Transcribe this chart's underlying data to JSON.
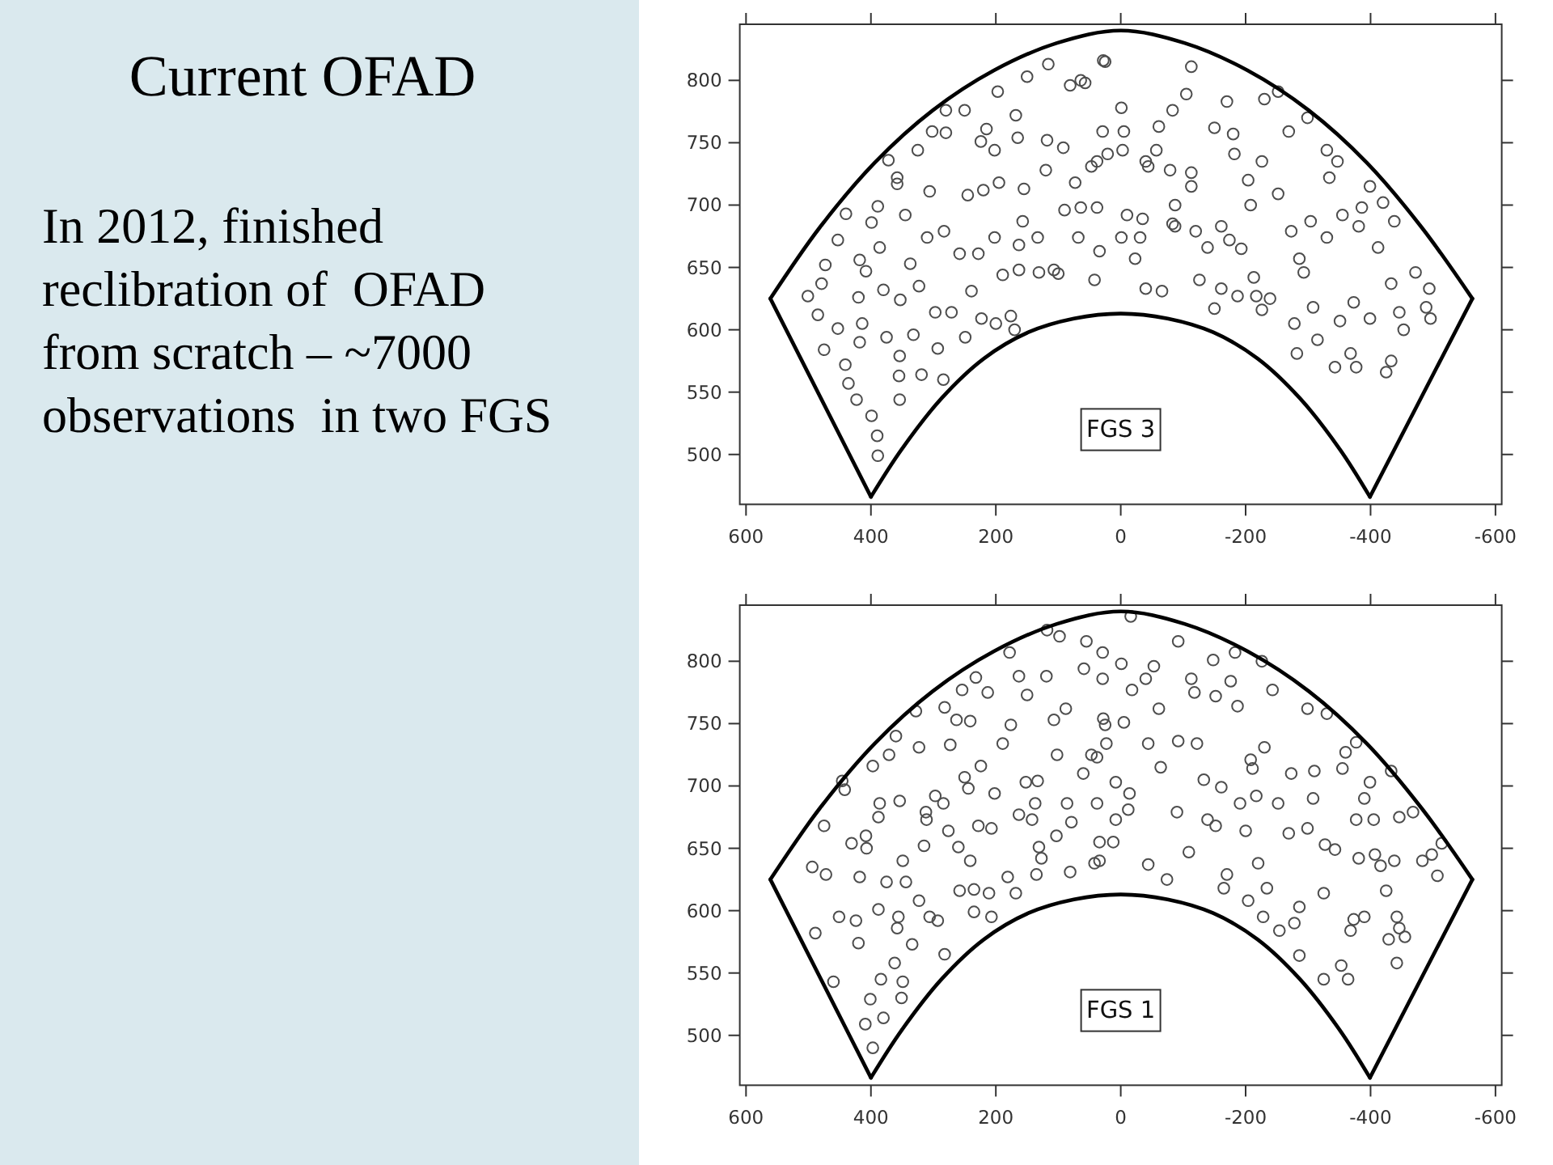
{
  "chart_data": [
    {
      "type": "other",
      "title": "Current OFAD",
      "annotations": [
        "In 2012, finished reclibration of  OFAD from scratch – ~7000 observations  in two FGS"
      ]
    },
    {
      "type": "scatter",
      "xlim": [
        610,
        -610
      ],
      "ylim": [
        460,
        845
      ],
      "xticks": [
        600,
        400,
        200,
        0,
        -200,
        -400,
        -600
      ],
      "yticks": [
        500,
        550,
        600,
        650,
        700,
        750,
        800
      ],
      "marker": "circle",
      "annotations": [
        "FGS 3"
      ],
      "series": [
        {
          "type": "scatter",
          "color": "#4d4d4d",
          "x": [
            501,
            485,
            475,
            473,
            479,
            453,
            440,
            453,
            441,
            436,
            423,
            418,
            414,
            420,
            418,
            408,
            399,
            389,
            386,
            399,
            390,
            389,
            375,
            380,
            372,
            358,
            358,
            353,
            355,
            354,
            354,
            345,
            337,
            332,
            325,
            323,
            319,
            306,
            310,
            302,
            297,
            293,
            284,
            283,
            280,
            280,
            271,
            258,
            250,
            245,
            249,
            239,
            228,
            224,
            220,
            223,
            215,
            202,
            202,
            200,
            195,
            189,
            197,
            176,
            170,
            163,
            163,
            165,
            168,
            157,
            155,
            150,
            133,
            131,
            120,
            118,
            116,
            107,
            100,
            92,
            90,
            81,
            73,
            68,
            64,
            57,
            64,
            47,
            42,
            38,
            34,
            29,
            28,
            25,
            -1,
            -5,
            -3,
            21,
            38,
            -10,
            -1,
            -31,
            -35,
            -23,
            -40,
            -40,
            -44,
            -57,
            -61,
            -83,
            -79,
            -87,
            -83,
            -87,
            -66,
            -105,
            -113,
            -113,
            -113,
            -120,
            -126,
            -139,
            -150,
            -161,
            -161,
            -150,
            -170,
            -174,
            -180,
            -182,
            -187,
            -193,
            -204,
            -208,
            -213,
            -217,
            -226,
            -226,
            -230,
            -239,
            -252,
            -252,
            -269,
            -273,
            -278,
            -282,
            -286,
            -293,
            -299,
            -304,
            -308,
            -315,
            -330,
            -330,
            -334,
            -347,
            -343,
            -351,
            -355,
            -368,
            -377,
            -373,
            -381,
            -386,
            -399,
            -399,
            -412,
            -420,
            -425,
            -433,
            -438,
            -433,
            -446,
            -453,
            -472,
            -489,
            -496,
            -494
          ],
          "values": [
            627,
            612,
            584,
            652,
            637,
            672,
            693,
            601,
            572,
            557,
            544,
            590,
            605,
            626,
            656,
            647,
            686,
            699,
            666,
            531,
            515,
            499,
            594,
            632,
            736,
            722,
            717,
            624,
            563,
            579,
            544,
            692,
            653,
            596,
            744,
            635,
            564,
            711,
            674,
            759,
            614,
            585,
            560,
            679,
            776,
            758,
            614,
            661,
            776,
            708,
            594,
            631,
            661,
            751,
            712,
            609,
            761,
            674,
            744,
            605,
            718,
            644,
            791,
            611,
            600,
            668,
            648,
            754,
            772,
            687,
            713,
            803,
            674,
            646,
            728,
            752,
            813,
            648,
            645,
            746,
            696,
            796,
            718,
            674,
            800,
            798,
            698,
            731,
            640,
            698,
            663,
            759,
            816,
            815,
            778,
            759,
            744,
            741,
            735,
            692,
            674,
            674,
            689,
            657,
            633,
            735,
            731,
            744,
            763,
            776,
            728,
            700,
            685,
            683,
            631,
            789,
            811,
            726,
            715,
            679,
            640,
            666,
            762,
            683,
            633,
            617,
            783,
            672,
            757,
            741,
            627,
            665,
            720,
            700,
            642,
            627,
            616,
            735,
            785,
            625,
            791,
            709,
            759,
            679,
            605,
            581,
            657,
            646,
            770,
            687,
            618,
            592,
            744,
            674,
            722,
            735,
            570,
            607,
            692,
            581,
            570,
            622,
            683,
            698,
            715,
            609,
            666,
            702,
            566,
            637,
            687,
            575,
            614,
            600,
            646,
            618,
            609,
            633
          ]
        },
        {
          "type": "line",
          "color": "#000000",
          "marker": "none",
          "x": [
            561,
            482,
            394,
            301,
            203,
            102,
            0,
            -102,
            -203,
            -301,
            -394,
            -482,
            -563
          ],
          "values": [
            625,
            682,
            734,
            776,
            808,
            830,
            840,
            830,
            808,
            776,
            734,
            682,
            625
          ]
        },
        {
          "type": "line",
          "color": "#000000",
          "marker": "none",
          "x": [
            -563,
            -399
          ],
          "values": [
            625,
            466
          ]
        },
        {
          "type": "line",
          "color": "#000000",
          "marker": "none",
          "x": [
            -399,
            -351,
            -287,
            -219,
            -148,
            -75,
            0,
            75,
            148,
            219,
            287,
            351,
            400
          ],
          "values": [
            466,
            504,
            545,
            577,
            598,
            609,
            613,
            609,
            598,
            577,
            545,
            504,
            466
          ]
        },
        {
          "type": "line",
          "color": "#000000",
          "marker": "none",
          "x": [
            400,
            561
          ],
          "values": [
            466,
            625
          ]
        }
      ]
    },
    {
      "type": "scatter",
      "xlim": [
        610,
        -610
      ],
      "ylim": [
        460,
        845
      ],
      "xticks": [
        600,
        400,
        200,
        0,
        -200,
        -400,
        -600
      ],
      "yticks": [
        500,
        550,
        600,
        650,
        700,
        750,
        800
      ],
      "marker": "circle",
      "annotations": [
        "FGS 1"
      ],
      "series": [
        {
          "type": "scatter",
          "color": "#4d4d4d",
          "x": [
            494,
            489,
            475,
            472,
            460,
            451,
            446,
            442,
            431,
            424,
            420,
            418,
            408,
            407,
            409,
            401,
            397,
            397,
            388,
            386,
            388,
            384,
            380,
            375,
            371,
            362,
            360,
            358,
            356,
            354,
            349,
            351,
            349,
            344,
            334,
            328,
            323,
            323,
            315,
            312,
            311,
            306,
            297,
            293,
            284,
            282,
            282,
            276,
            273,
            263,
            260,
            258,
            254,
            250,
            244,
            241,
            241,
            235,
            235,
            232,
            228,
            224,
            213,
            211,
            207,
            202,
            207,
            189,
            181,
            178,
            176,
            168,
            163,
            163,
            152,
            150,
            142,
            137,
            135,
            133,
            131,
            127,
            119,
            118,
            107,
            102,
            98,
            103,
            88,
            86,
            81,
            79,
            59,
            55,
            60,
            47,
            42,
            38,
            34,
            28,
            29,
            -16,
            29,
            -1,
            -18,
            25,
            -5,
            23,
            38,
            8,
            -12,
            -14,
            8,
            12,
            34,
            -44,
            -44,
            -40,
            -53,
            -61,
            -64,
            -74,
            -90,
            -92,
            -92,
            -109,
            -113,
            -118,
            -122,
            -133,
            -139,
            -148,
            -152,
            -152,
            -161,
            -165,
            -170,
            -176,
            -183,
            -187,
            -191,
            -200,
            -204,
            -208,
            -211,
            -220,
            -217,
            -226,
            -228,
            -230,
            -234,
            -243,
            -252,
            -254,
            -269,
            -273,
            -278,
            -286,
            -286,
            -299,
            -299,
            -308,
            -310,
            -325,
            -325,
            -327,
            -330,
            -343,
            -353,
            -355,
            -360,
            -364,
            -368,
            -373,
            -377,
            -377,
            -381,
            -390,
            -390,
            -399,
            -405,
            -407,
            -416,
            -425,
            -429,
            -433,
            -438,
            -442,
            -446,
            -455,
            -442,
            -446,
            -468,
            -483,
            -507,
            -514,
            -498
          ],
          "values": [
            635,
            582,
            668,
            629,
            543,
            595,
            704,
            697,
            654,
            592,
            574,
            627,
            660,
            650,
            509,
            529,
            490,
            716,
            601,
            686,
            675,
            545,
            514,
            623,
            725,
            558,
            740,
            586,
            595,
            688,
            543,
            530,
            640,
            623,
            573,
            760,
            731,
            608,
            652,
            679,
            673,
            595,
            692,
            592,
            686,
            565,
            763,
            664,
            733,
            753,
            651,
            616,
            777,
            707,
            698,
            752,
            640,
            599,
            617,
            787,
            668,
            716,
            775,
            614,
            666,
            694,
            595,
            734,
            627,
            807,
            749,
            614,
            677,
            788,
            703,
            773,
            673,
            686,
            629,
            704,
            651,
            642,
            788,
            825,
            753,
            725,
            820,
            660,
            762,
            686,
            631,
            671,
            794,
            816,
            710,
            725,
            638,
            686,
            655,
            754,
            786,
            836,
            807,
            798,
            777,
            749,
            751,
            734,
            723,
            703,
            681,
            694,
            673,
            655,
            640,
            637,
            734,
            786,
            796,
            762,
            715,
            625,
            679,
            736,
            816,
            647,
            786,
            775,
            734,
            705,
            673,
            801,
            772,
            668,
            699,
            618,
            629,
            784,
            807,
            764,
            686,
            664,
            608,
            721,
            714,
            638,
            692,
            800,
            595,
            731,
            618,
            777,
            686,
            584,
            662,
            710,
            590,
            564,
            603,
            762,
            666,
            690,
            712,
            614,
            545,
            653,
            758,
            649,
            556,
            714,
            727,
            545,
            584,
            593,
            735,
            673,
            642,
            690,
            595,
            703,
            673,
            645,
            636,
            616,
            577,
            712,
            640,
            558,
            586,
            579,
            595,
            675,
            679,
            640,
            628,
            654,
            645
          ]
        },
        {
          "type": "line",
          "color": "#000000",
          "marker": "none",
          "x": [
            561,
            482,
            394,
            301,
            203,
            102,
            0,
            -102,
            -203,
            -301,
            -394,
            -482,
            -563
          ],
          "values": [
            625,
            682,
            734,
            776,
            808,
            830,
            840,
            830,
            808,
            776,
            734,
            682,
            625
          ]
        },
        {
          "type": "line",
          "color": "#000000",
          "marker": "none",
          "x": [
            -563,
            -399
          ],
          "values": [
            625,
            466
          ]
        },
        {
          "type": "line",
          "color": "#000000",
          "marker": "none",
          "x": [
            -399,
            -351,
            -287,
            -219,
            -148,
            -75,
            0,
            75,
            148,
            219,
            287,
            351,
            400
          ],
          "values": [
            466,
            504,
            545,
            577,
            598,
            609,
            613,
            609,
            598,
            577,
            545,
            504,
            466
          ]
        },
        {
          "type": "line",
          "color": "#000000",
          "marker": "none",
          "x": [
            400,
            561
          ],
          "values": [
            466,
            625
          ]
        }
      ]
    }
  ]
}
